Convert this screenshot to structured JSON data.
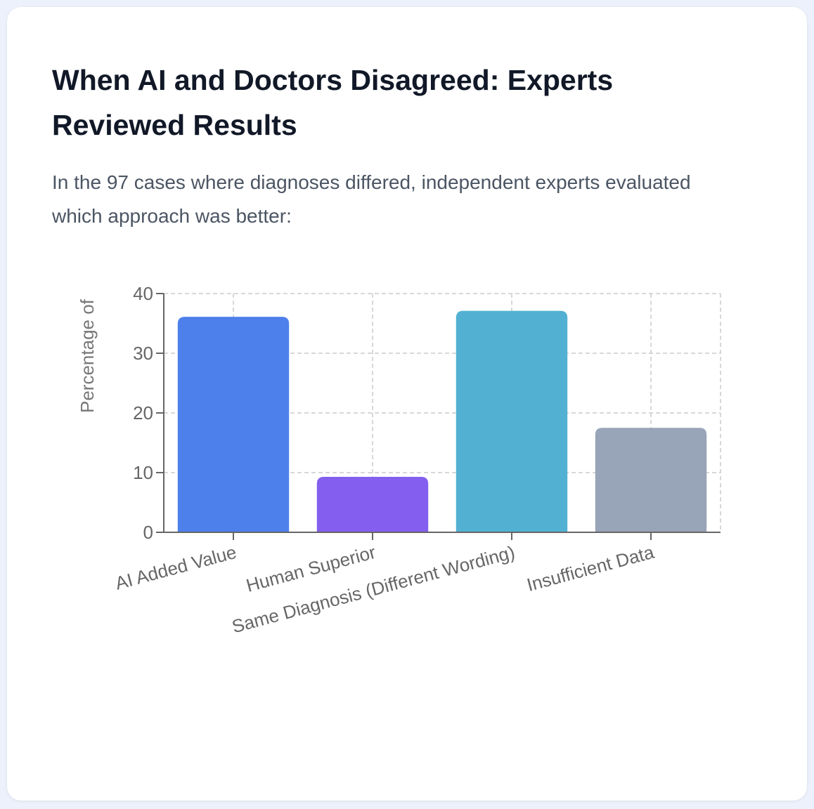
{
  "title": "When AI and Doctors Disagreed: Experts Reviewed Results",
  "subtitle": "In the 97 cases where diagnoses differed, independent experts evaluated which approach was better:",
  "chart_data": {
    "type": "bar",
    "title": "",
    "xlabel": "",
    "ylabel": "Percentage of",
    "ylim": [
      0,
      40
    ],
    "yticks": [
      0,
      10,
      20,
      30,
      40
    ],
    "grid": true,
    "categories": [
      "AI Added Value",
      "Human Superior",
      "Same Diagnosis (Different Wording)",
      "Insufficient Data"
    ],
    "values": [
      36.1,
      9.3,
      37.1,
      17.5
    ],
    "colors": [
      "#4e80ec",
      "#845eee",
      "#52b1d2",
      "#98a4b7"
    ]
  }
}
